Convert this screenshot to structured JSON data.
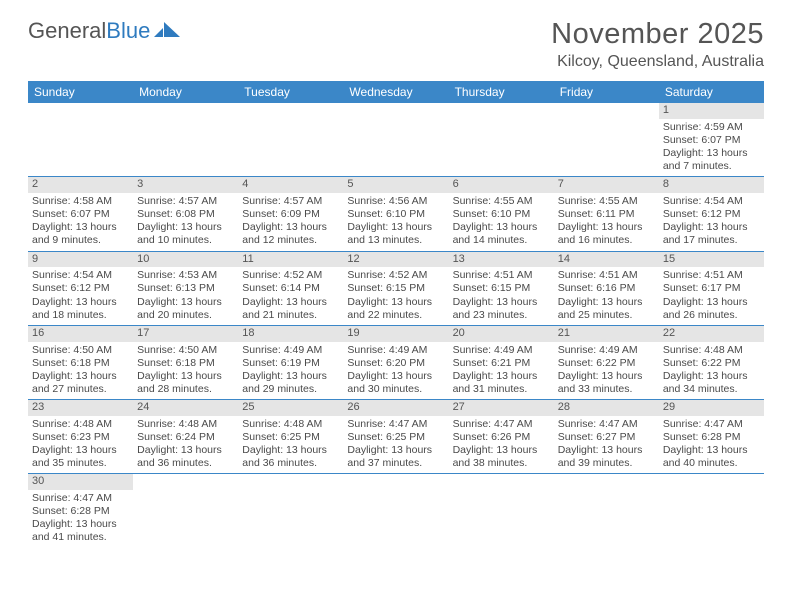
{
  "logo": {
    "part1": "General",
    "part2": "Blue"
  },
  "title": "November 2025",
  "location": "Kilcoy, Queensland, Australia",
  "colors": {
    "header_bg": "#3b87c8",
    "daynum_bg": "#e5e5e5",
    "border": "#3b87c8",
    "text": "#4a4a4a",
    "logo_blue": "#2f7bbf"
  },
  "day_names": [
    "Sunday",
    "Monday",
    "Tuesday",
    "Wednesday",
    "Thursday",
    "Friday",
    "Saturday"
  ],
  "weeks": [
    [
      {
        "blank": true
      },
      {
        "blank": true
      },
      {
        "blank": true
      },
      {
        "blank": true
      },
      {
        "blank": true
      },
      {
        "blank": true
      },
      {
        "day": "1",
        "sunrise": "Sunrise: 4:59 AM",
        "sunset": "Sunset: 6:07 PM",
        "dl1": "Daylight: 13 hours",
        "dl2": "and 7 minutes."
      }
    ],
    [
      {
        "day": "2",
        "sunrise": "Sunrise: 4:58 AM",
        "sunset": "Sunset: 6:07 PM",
        "dl1": "Daylight: 13 hours",
        "dl2": "and 9 minutes."
      },
      {
        "day": "3",
        "sunrise": "Sunrise: 4:57 AM",
        "sunset": "Sunset: 6:08 PM",
        "dl1": "Daylight: 13 hours",
        "dl2": "and 10 minutes."
      },
      {
        "day": "4",
        "sunrise": "Sunrise: 4:57 AM",
        "sunset": "Sunset: 6:09 PM",
        "dl1": "Daylight: 13 hours",
        "dl2": "and 12 minutes."
      },
      {
        "day": "5",
        "sunrise": "Sunrise: 4:56 AM",
        "sunset": "Sunset: 6:10 PM",
        "dl1": "Daylight: 13 hours",
        "dl2": "and 13 minutes."
      },
      {
        "day": "6",
        "sunrise": "Sunrise: 4:55 AM",
        "sunset": "Sunset: 6:10 PM",
        "dl1": "Daylight: 13 hours",
        "dl2": "and 14 minutes."
      },
      {
        "day": "7",
        "sunrise": "Sunrise: 4:55 AM",
        "sunset": "Sunset: 6:11 PM",
        "dl1": "Daylight: 13 hours",
        "dl2": "and 16 minutes."
      },
      {
        "day": "8",
        "sunrise": "Sunrise: 4:54 AM",
        "sunset": "Sunset: 6:12 PM",
        "dl1": "Daylight: 13 hours",
        "dl2": "and 17 minutes."
      }
    ],
    [
      {
        "day": "9",
        "sunrise": "Sunrise: 4:54 AM",
        "sunset": "Sunset: 6:12 PM",
        "dl1": "Daylight: 13 hours",
        "dl2": "and 18 minutes."
      },
      {
        "day": "10",
        "sunrise": "Sunrise: 4:53 AM",
        "sunset": "Sunset: 6:13 PM",
        "dl1": "Daylight: 13 hours",
        "dl2": "and 20 minutes."
      },
      {
        "day": "11",
        "sunrise": "Sunrise: 4:52 AM",
        "sunset": "Sunset: 6:14 PM",
        "dl1": "Daylight: 13 hours",
        "dl2": "and 21 minutes."
      },
      {
        "day": "12",
        "sunrise": "Sunrise: 4:52 AM",
        "sunset": "Sunset: 6:15 PM",
        "dl1": "Daylight: 13 hours",
        "dl2": "and 22 minutes."
      },
      {
        "day": "13",
        "sunrise": "Sunrise: 4:51 AM",
        "sunset": "Sunset: 6:15 PM",
        "dl1": "Daylight: 13 hours",
        "dl2": "and 23 minutes."
      },
      {
        "day": "14",
        "sunrise": "Sunrise: 4:51 AM",
        "sunset": "Sunset: 6:16 PM",
        "dl1": "Daylight: 13 hours",
        "dl2": "and 25 minutes."
      },
      {
        "day": "15",
        "sunrise": "Sunrise: 4:51 AM",
        "sunset": "Sunset: 6:17 PM",
        "dl1": "Daylight: 13 hours",
        "dl2": "and 26 minutes."
      }
    ],
    [
      {
        "day": "16",
        "sunrise": "Sunrise: 4:50 AM",
        "sunset": "Sunset: 6:18 PM",
        "dl1": "Daylight: 13 hours",
        "dl2": "and 27 minutes."
      },
      {
        "day": "17",
        "sunrise": "Sunrise: 4:50 AM",
        "sunset": "Sunset: 6:18 PM",
        "dl1": "Daylight: 13 hours",
        "dl2": "and 28 minutes."
      },
      {
        "day": "18",
        "sunrise": "Sunrise: 4:49 AM",
        "sunset": "Sunset: 6:19 PM",
        "dl1": "Daylight: 13 hours",
        "dl2": "and 29 minutes."
      },
      {
        "day": "19",
        "sunrise": "Sunrise: 4:49 AM",
        "sunset": "Sunset: 6:20 PM",
        "dl1": "Daylight: 13 hours",
        "dl2": "and 30 minutes."
      },
      {
        "day": "20",
        "sunrise": "Sunrise: 4:49 AM",
        "sunset": "Sunset: 6:21 PM",
        "dl1": "Daylight: 13 hours",
        "dl2": "and 31 minutes."
      },
      {
        "day": "21",
        "sunrise": "Sunrise: 4:49 AM",
        "sunset": "Sunset: 6:22 PM",
        "dl1": "Daylight: 13 hours",
        "dl2": "and 33 minutes."
      },
      {
        "day": "22",
        "sunrise": "Sunrise: 4:48 AM",
        "sunset": "Sunset: 6:22 PM",
        "dl1": "Daylight: 13 hours",
        "dl2": "and 34 minutes."
      }
    ],
    [
      {
        "day": "23",
        "sunrise": "Sunrise: 4:48 AM",
        "sunset": "Sunset: 6:23 PM",
        "dl1": "Daylight: 13 hours",
        "dl2": "and 35 minutes."
      },
      {
        "day": "24",
        "sunrise": "Sunrise: 4:48 AM",
        "sunset": "Sunset: 6:24 PM",
        "dl1": "Daylight: 13 hours",
        "dl2": "and 36 minutes."
      },
      {
        "day": "25",
        "sunrise": "Sunrise: 4:48 AM",
        "sunset": "Sunset: 6:25 PM",
        "dl1": "Daylight: 13 hours",
        "dl2": "and 36 minutes."
      },
      {
        "day": "26",
        "sunrise": "Sunrise: 4:47 AM",
        "sunset": "Sunset: 6:25 PM",
        "dl1": "Daylight: 13 hours",
        "dl2": "and 37 minutes."
      },
      {
        "day": "27",
        "sunrise": "Sunrise: 4:47 AM",
        "sunset": "Sunset: 6:26 PM",
        "dl1": "Daylight: 13 hours",
        "dl2": "and 38 minutes."
      },
      {
        "day": "28",
        "sunrise": "Sunrise: 4:47 AM",
        "sunset": "Sunset: 6:27 PM",
        "dl1": "Daylight: 13 hours",
        "dl2": "and 39 minutes."
      },
      {
        "day": "29",
        "sunrise": "Sunrise: 4:47 AM",
        "sunset": "Sunset: 6:28 PM",
        "dl1": "Daylight: 13 hours",
        "dl2": "and 40 minutes."
      }
    ],
    [
      {
        "day": "30",
        "sunrise": "Sunrise: 4:47 AM",
        "sunset": "Sunset: 6:28 PM",
        "dl1": "Daylight: 13 hours",
        "dl2": "and 41 minutes."
      },
      {
        "blank": true
      },
      {
        "blank": true
      },
      {
        "blank": true
      },
      {
        "blank": true
      },
      {
        "blank": true
      },
      {
        "blank": true
      }
    ]
  ]
}
